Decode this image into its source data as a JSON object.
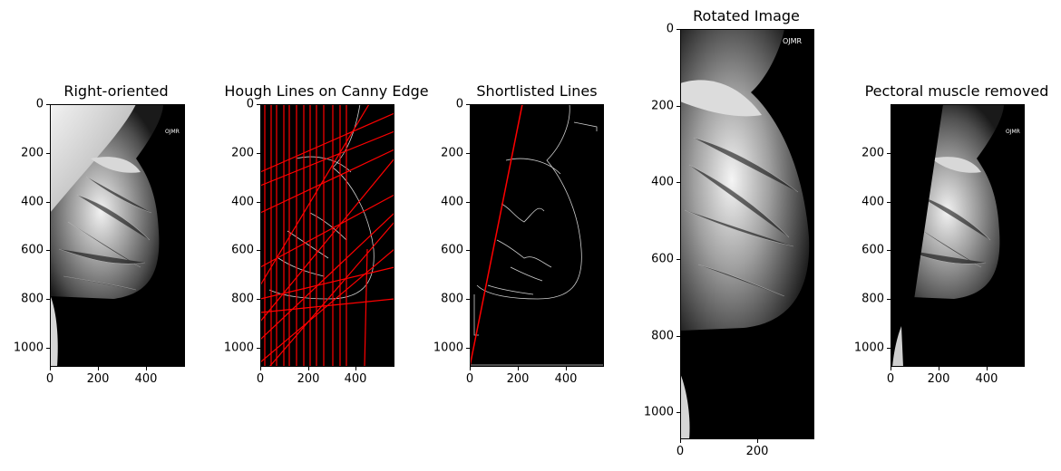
{
  "figure": {
    "panels": [
      {
        "id": "right-oriented",
        "title": "Right-oriented",
        "x_ticks": [
          "0",
          "200",
          "400"
        ],
        "y_ticks": [
          "0",
          "200",
          "400",
          "600",
          "800",
          "1000"
        ],
        "image": "mammogram, breast facing right, pectoral muscle at upper left",
        "marker_text": "OJMR"
      },
      {
        "id": "hough-lines",
        "title": "Hough Lines on Canny Edge",
        "x_ticks": [
          "0",
          "200",
          "400"
        ],
        "y_ticks": [
          "0",
          "200",
          "400",
          "600",
          "800",
          "1000"
        ],
        "image": "canny edge map overlaid with many red Hough lines",
        "line_color": "#ff0000"
      },
      {
        "id": "shortlisted-lines",
        "title": "Shortlisted Lines",
        "x_ticks": [
          "0",
          "200",
          "400"
        ],
        "y_ticks": [
          "0",
          "200",
          "400",
          "600",
          "800",
          "1000"
        ],
        "image": "canny edge map with single shortlisted red line",
        "line_color": "#ff0000"
      },
      {
        "id": "rotated-image",
        "title": "Rotated Image",
        "x_ticks": [
          "0",
          "200"
        ],
        "y_ticks": [
          "0",
          "200",
          "400",
          "600",
          "800",
          "1000"
        ],
        "image": "mammogram rotated, narrow tall view",
        "marker_text": "OJMR"
      },
      {
        "id": "pectoral-removed",
        "title": "Pectoral muscle removed",
        "x_ticks": [
          "0",
          "200",
          "400"
        ],
        "y_ticks": [
          "200",
          "400",
          "600",
          "800",
          "1000"
        ],
        "image": "mammogram with pectoral muscle region blacked out",
        "marker_text": "OJMR"
      }
    ],
    "colors": {
      "background": "#000000",
      "line": "#ff0000",
      "edge": "#cfcfcf"
    }
  }
}
